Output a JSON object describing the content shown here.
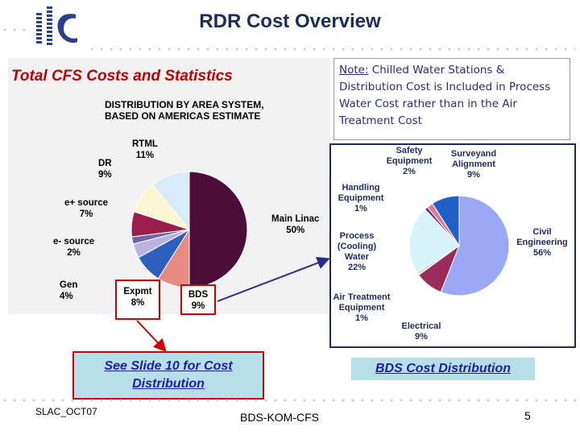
{
  "header": {
    "title": "RDR Cost Overview",
    "logo_text": "ilc"
  },
  "left_panel": {
    "title": "Total CFS Costs and Statistics",
    "subtitle_line1": "DISTRIBUTION BY AREA SYSTEM,",
    "subtitle_line2": "BASED ON AMERICAS ESTIMATE"
  },
  "note": {
    "prefix": "Note:",
    "text": " Chilled Water Stations & Distribution Cost is Included in Process Water Cost rather than in the  Air Treatment Cost"
  },
  "links": {
    "see_slide_line1": "See Slide 10 for Cost",
    "see_slide_line2": "Distribution",
    "bds_cost": "BDS Cost Distribution"
  },
  "footer": {
    "left": "SLAC_OCT07",
    "center": "BDS-KOM-CFS",
    "page": "5"
  },
  "colors": {
    "title": "#1f2a5c",
    "accent_red": "#c00000",
    "link_blue": "#2020a0",
    "box_fill": "#b7dfe8"
  },
  "chart_data": [
    {
      "type": "pie",
      "title": "Total CFS Costs and Statistics",
      "subtitle": "DISTRIBUTION BY AREA SYSTEM, BASED ON AMERICAS ESTIMATE",
      "slices": [
        {
          "name": "Main Linac",
          "pct_label": "50%",
          "value": 50,
          "color": "#4b0d3a"
        },
        {
          "name": "BDS",
          "pct_label": "9%",
          "value": 9,
          "color": "#e88a80"
        },
        {
          "name": "Expmt",
          "pct_label": "8%",
          "value": 8,
          "color": "#2d5fbf"
        },
        {
          "name": "Gen",
          "pct_label": "4%",
          "value": 4,
          "color": "#b9b3df"
        },
        {
          "name": "e- source",
          "pct_label": "2%",
          "value": 2,
          "color": "#6e64a8"
        },
        {
          "name": "e+ source",
          "pct_label": "7%",
          "value": 7,
          "color": "#9b1d4a"
        },
        {
          "name": "DR",
          "pct_label": "9%",
          "value": 9,
          "color": "#fbf6d0"
        },
        {
          "name": "RTML",
          "pct_label": "11%",
          "value": 11,
          "color": "#d8ebf6"
        }
      ]
    },
    {
      "type": "pie",
      "title": "BDS Cost Distribution",
      "slices": [
        {
          "name": "Civil Engineering",
          "label_line1": "Civil",
          "label_line2": "Engineering",
          "pct_label": "56%",
          "value": 56,
          "color": "#9aa8f5"
        },
        {
          "name": "Electrical",
          "pct_label": "9%",
          "value": 9,
          "color": "#9b2b5a"
        },
        {
          "name": "Air Treatment Equipment",
          "label_line1": "Air Treatment",
          "label_line2": "Equipment",
          "pct_label": "1%",
          "value": 1,
          "color": "#c6e3c0"
        },
        {
          "name": "Process (Cooling) Water",
          "label_line1": "Process",
          "label_line2": "(Cooling)",
          "label_line3": "Water",
          "pct_label": "22%",
          "value": 22,
          "color": "#d9f3fb"
        },
        {
          "name": "Handling Equipment",
          "label_line1": "Handling",
          "label_line2": "Equipment",
          "pct_label": "1%",
          "value": 1,
          "color": "#5e2a8a"
        },
        {
          "name": "Safety Equipment",
          "label_line1": "Safety",
          "label_line2": "Equipment",
          "pct_label": "2%",
          "value": 2,
          "color": "#e47a8a"
        },
        {
          "name": "Surveyand Alignment",
          "label_line1": "Surveyand",
          "label_line2": "Alignment",
          "pct_label": "9%",
          "value": 9,
          "color": "#1e5fc8"
        }
      ]
    }
  ]
}
